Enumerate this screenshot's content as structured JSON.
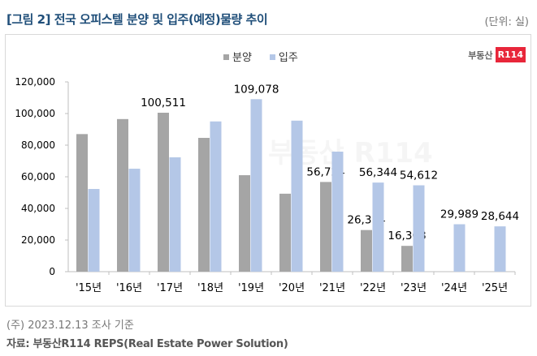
{
  "header": {
    "title": "[그림 2] 전국 오피스텔 분양 및 입주(예정)물량 추이",
    "unit": "(단위: 실)"
  },
  "logo": {
    "text": "부동산",
    "badge": "R114"
  },
  "footer": {
    "note": "(주) 2023.12.13 조사 기준",
    "source": "자료: 부동산R114 REPS(Real Estate Power Solution)"
  },
  "colors": {
    "분양": "#a5a5a5",
    "입주": "#b4c7e7"
  },
  "chart_data": {
    "type": "bar",
    "title": "전국 오피스텔 분양 및 입주(예정)물량 추이",
    "categories": [
      "'15년",
      "'16년",
      "'17년",
      "'18년",
      "'19년",
      "'20년",
      "'21년",
      "'22년",
      "'23년",
      "'24년",
      "'25년"
    ],
    "series": [
      {
        "name": "분양",
        "values": [
          87000,
          96500,
          100511,
          84600,
          61000,
          49300,
          56724,
          26314,
          16308,
          null,
          null
        ],
        "labels": [
          null,
          null,
          "100,511",
          null,
          null,
          null,
          "56,724",
          "26,314",
          "16,308",
          null,
          null
        ]
      },
      {
        "name": "입주",
        "values": [
          52300,
          65100,
          72300,
          95000,
          109078,
          95500,
          75900,
          56344,
          54612,
          29989,
          28644
        ],
        "labels": [
          null,
          null,
          null,
          null,
          "109,078",
          null,
          null,
          "56,344",
          "54,612",
          "29,989",
          "28,644"
        ]
      }
    ],
    "yticks": [
      "0",
      "20,000",
      "40,000",
      "60,000",
      "80,000",
      "100,000",
      "120,000"
    ],
    "ylim": [
      0,
      120000
    ],
    "legend": "top-center",
    "grid": false
  }
}
